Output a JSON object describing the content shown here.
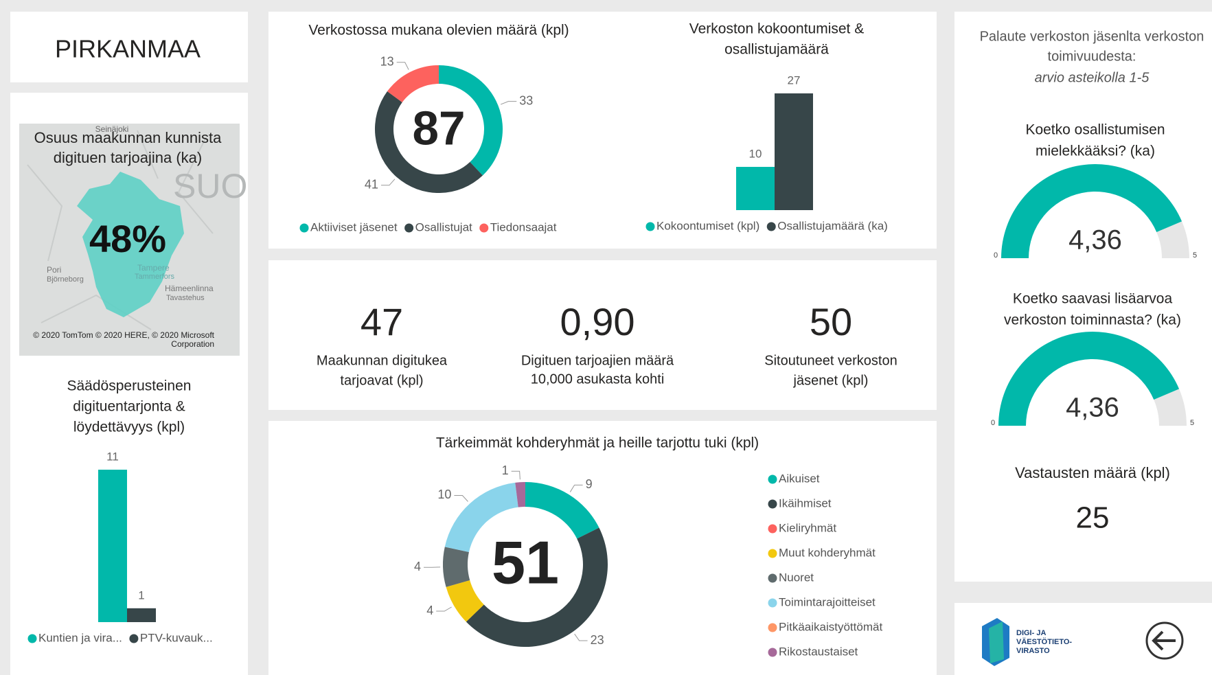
{
  "header": {
    "title": "PIRKANMAA"
  },
  "map": {
    "title": [
      "Osuus maakunnan kunnista",
      "digituen tarjoajina (ka)"
    ],
    "value": 48,
    "value_label": "48%",
    "places": [
      "Seinäjoki",
      "SUO",
      "Pori",
      "Björneborg",
      "Tampere",
      "Tammerfors",
      "Hämeenlinna",
      "Tavastehus"
    ],
    "attribution": [
      "© 2020 TomTom © 2020 HERE, © 2020 Microsoft",
      "Corporation"
    ]
  },
  "chart_data": [
    {
      "type": "donut",
      "title": [
        "Verkostossa mukana olevien määrä (kpl)"
      ],
      "categories": [
        "Aktiiviset jäsenet",
        "Osallistujat",
        "Tiedonsaajat"
      ],
      "values": [
        33,
        41,
        13
      ],
      "colors": [
        "#01b8aa",
        "#374649",
        "#fd625e"
      ],
      "total": 87
    },
    {
      "type": "bar",
      "title": [
        "Verkoston kokoontumiset &",
        "osallistujamäärä"
      ],
      "categories": [
        null
      ],
      "series": [
        {
          "name": "Kokoontumiset (kpl)",
          "color": "#01b8aa",
          "values": [
            10
          ]
        },
        {
          "name": "Osallistujamäärä (ka)",
          "color": "#374649",
          "values": [
            27
          ]
        }
      ]
    },
    {
      "type": "bar",
      "title": [
        "Säädösperusteinen",
        "digituentarjonta &",
        "löydettävyys (kpl)"
      ],
      "categories": [
        null
      ],
      "series": [
        {
          "name": "Kuntien ja vira...",
          "color": "#01b8aa",
          "values": [
            11
          ]
        },
        {
          "name": "PTV-kuvauk...",
          "color": "#374649",
          "values": [
            1
          ]
        }
      ]
    },
    {
      "type": "donut",
      "title": [
        "Tärkeimmät kohderyhmät ja heille tarjottu tuki (kpl)"
      ],
      "categories": [
        "Aikuiset",
        "Ikäihmiset",
        "Kieliryhmät",
        "Muut kohderyhmät",
        "Nuoret",
        "Toimintarajoitteiset",
        "Pitkäaikaistyöttömät",
        "Rikostaustaiset"
      ],
      "values": [
        9,
        23,
        null,
        4,
        4,
        10,
        null,
        1
      ],
      "colors": [
        "#01b8aa",
        "#374649",
        "#fd625e",
        "#f2c80f",
        "#5f6b6d",
        "#8ad4eb",
        "#fe9666",
        "#a66999"
      ],
      "total": 51
    },
    {
      "type": "gauge",
      "title": [
        "Koetko osallistumisen",
        "mielekkääksi? (ka)"
      ],
      "value": 4.36,
      "value_label": "4,36",
      "ylim": [
        0,
        5
      ],
      "yticks": [
        0,
        5
      ],
      "color": "#01b8aa"
    },
    {
      "type": "gauge",
      "title": [
        "Koetko saavasi lisäarvoa",
        "verkoston toiminnasta? (ka)"
      ],
      "value": 4.36,
      "value_label": "4,36",
      "ylim": [
        0,
        5
      ],
      "yticks": [
        0,
        5
      ],
      "color": "#01b8aa"
    }
  ],
  "kpis": [
    {
      "value": 47,
      "label": [
        "Maakunnan digitukea",
        "tarjoavat (kpl)"
      ]
    },
    {
      "value": 0.9,
      "value_label": "0,90",
      "label": [
        "Digituen tarjoajien määrä",
        "10,000 asukasta kohti"
      ]
    },
    {
      "value": 50,
      "label": [
        "Sitoutuneet verkoston",
        "jäsenet (kpl)"
      ]
    }
  ],
  "feedback": {
    "title": [
      "Palaute verkoston jäsenlta verkoston",
      "toimivuudesta:"
    ],
    "subtitle": "arvio asteikolla 1-5",
    "responses_label": "Vastausten määrä (kpl)",
    "responses": 25
  },
  "logo": {
    "text": [
      "DIGI- JA",
      "VÄESTÖTIETO-",
      "VIRASTO"
    ]
  }
}
